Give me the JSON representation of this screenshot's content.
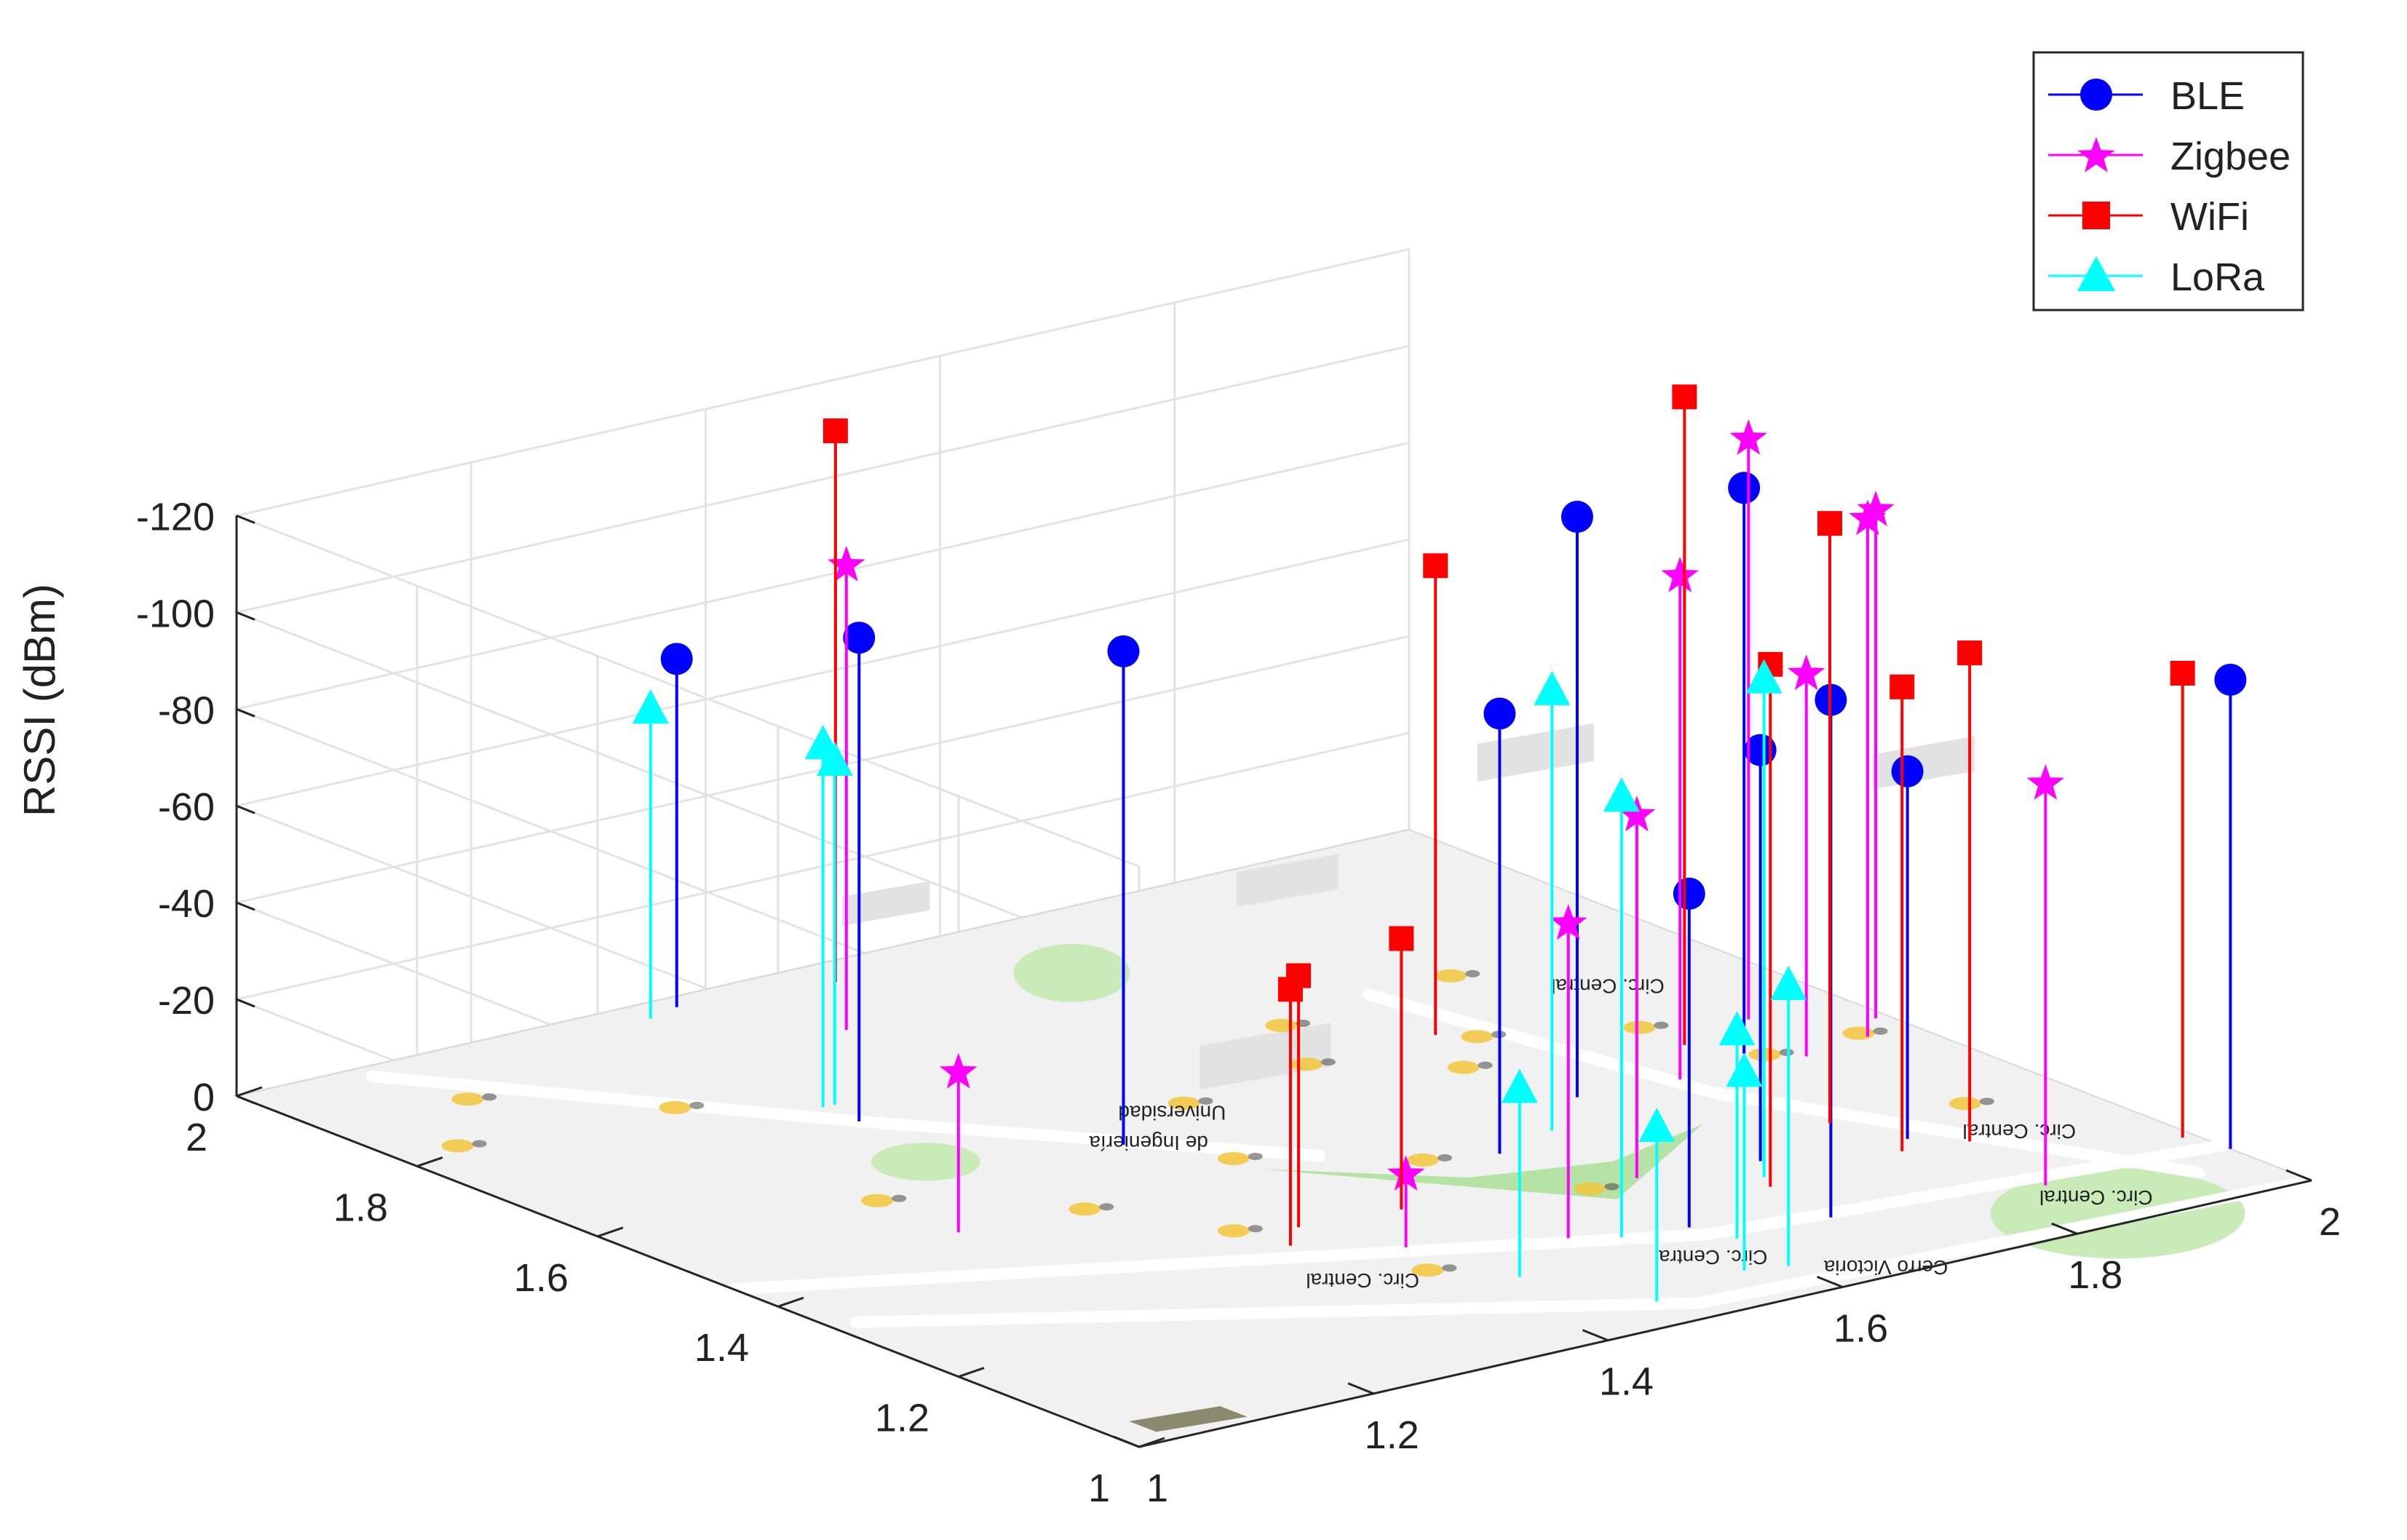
{
  "chart_data": {
    "type": "3d-stem",
    "title": "",
    "xlabel": "",
    "ylabel": "",
    "zlabel": "RSSI (dBm)",
    "x_ticks": [
      "1",
      "1.2",
      "1.4",
      "1.6",
      "1.8",
      "2"
    ],
    "y_ticks": [
      "1",
      "1.2",
      "1.4",
      "1.6",
      "1.8",
      "2"
    ],
    "z_ticks": [
      "0",
      "-20",
      "-40",
      "-60",
      "-80",
      "-100",
      "-120"
    ],
    "xlim": [
      1,
      2
    ],
    "ylim": [
      1,
      2
    ],
    "zlim": [
      0,
      -120
    ],
    "z_direction": "reversed",
    "grid": true,
    "floor_background": "campus map",
    "legend": {
      "position": "top-right",
      "entries": [
        "BLE",
        "Zigbee",
        "WiFi",
        "LoRa"
      ]
    },
    "series": [
      {
        "name": "BLE",
        "color": "#0000ff",
        "marker": "circle",
        "points": [
          {
            "x": 1.36,
            "y": 1.98,
            "z": -72
          },
          {
            "x": 1.3,
            "y": 1.7,
            "z": -100
          },
          {
            "x": 1.41,
            "y": 1.55,
            "z": -102
          },
          {
            "x": 1.6,
            "y": 1.17,
            "z": -69
          },
          {
            "x": 1.6,
            "y": 1.38,
            "z": -91
          },
          {
            "x": 1.73,
            "y": 1.26,
            "z": -85
          },
          {
            "x": 1.69,
            "y": 1.13,
            "z": -107
          },
          {
            "x": 1.72,
            "y": 1.45,
            "z": -120
          },
          {
            "x": 1.87,
            "y": 1.46,
            "z": -117
          },
          {
            "x": 1.84,
            "y": 1.24,
            "z": -76
          },
          {
            "x": 2.0,
            "y": 1.09,
            "z": -97
          }
        ]
      },
      {
        "name": "Zigbee",
        "color": "#ff00ff",
        "marker": "star",
        "points": [
          {
            "x": 1.42,
            "y": 1.87,
            "z": -96
          },
          {
            "x": 1.2,
            "y": 1.46,
            "z": -33
          },
          {
            "x": 1.42,
            "y": 1.25,
            "z": -15
          },
          {
            "x": 1.52,
            "y": 1.2,
            "z": -65
          },
          {
            "x": 1.64,
            "y": 1.28,
            "z": -75
          },
          {
            "x": 1.8,
            "y": 1.44,
            "z": -104
          },
          {
            "x": 1.92,
            "y": 1.52,
            "z": -120
          },
          {
            "x": 1.96,
            "y": 1.44,
            "z": -107
          },
          {
            "x": 1.9,
            "y": 1.43,
            "z": -79
          },
          {
            "x": 1.85,
            "y": 1.1,
            "z": -83
          },
          {
            "x": 1.99,
            "y": 1.47,
            "z": -105
          }
        ]
      },
      {
        "name": "WiFi",
        "color": "#ff0000",
        "marker": "square",
        "points": [
          {
            "x": 1.48,
            "y": 1.96,
            "z": -114
          },
          {
            "x": 1.85,
            "y": 1.5,
            "z": -134
          },
          {
            "x": 1.73,
            "y": 1.62,
            "z": -97
          },
          {
            "x": 1.36,
            "y": 1.3,
            "z": -53
          },
          {
            "x": 1.39,
            "y": 1.33,
            "z": -52
          },
          {
            "x": 1.47,
            "y": 1.32,
            "z": -56
          },
          {
            "x": 1.7,
            "y": 1.21,
            "z": -108
          },
          {
            "x": 1.82,
            "y": 1.3,
            "z": -124
          },
          {
            "x": 1.82,
            "y": 1.22,
            "z": -96
          },
          {
            "x": 1.87,
            "y": 1.21,
            "z": -101
          },
          {
            "x": 1.99,
            "y": 1.13,
            "z": -96
          }
        ]
      },
      {
        "name": "LoRa",
        "color": "#00ffff",
        "marker": "triangle",
        "points": [
          {
            "x": 1.33,
            "y": 1.97,
            "z": -64
          },
          {
            "x": 1.3,
            "y": 1.74,
            "z": -75
          },
          {
            "x": 1.31,
            "y": 1.74,
            "z": -71
          },
          {
            "x": 1.66,
            "y": 1.4,
            "z": -91
          },
          {
            "x": 1.55,
            "y": 1.18,
            "z": -91
          },
          {
            "x": 1.44,
            "y": 1.15,
            "z": -39
          },
          {
            "x": 1.71,
            "y": 1.23,
            "z": -103
          },
          {
            "x": 1.61,
            "y": 1.13,
            "z": -43
          },
          {
            "x": 1.6,
            "y": 1.06,
            "z": -58
          },
          {
            "x": 1.57,
            "y": 1.07,
            "z": -41
          },
          {
            "x": 1.48,
            "y": 1.05,
            "z": -36
          }
        ]
      }
    ]
  },
  "map": {
    "labels": [
      "Universidad",
      "de Ingeniería",
      "Circ. Central",
      "Circ. Central",
      "Circ. Central",
      "Circ. Central",
      "Cerro Victoria",
      "Circ. Central"
    ]
  }
}
